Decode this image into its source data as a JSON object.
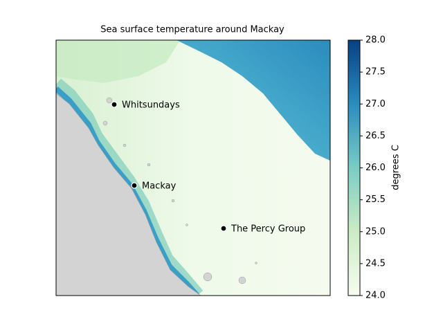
{
  "title": "Sea surface temperature around Mackay",
  "places": [
    {
      "label": "Whitsundays"
    },
    {
      "label": "Mackay"
    },
    {
      "label": "The Percy Group"
    }
  ],
  "colorbar": {
    "label": "degrees C",
    "lim": [
      24,
      28
    ],
    "colors": [
      "#f7fcf0",
      "#ccebc5",
      "#7bccc4",
      "#2b8cbe",
      "#084081"
    ],
    "ticks": [
      {
        "value": 24,
        "label": "24.0"
      },
      24.5,
      {
        "value": 25,
        "label": "25.0"
      },
      25.5,
      {
        "value": 26,
        "label": "26.0"
      },
      26.5,
      {
        "value": 27,
        "label": "27.0"
      },
      27.5,
      {
        "value": 28,
        "label": "28.0"
      }
    ]
  }
}
